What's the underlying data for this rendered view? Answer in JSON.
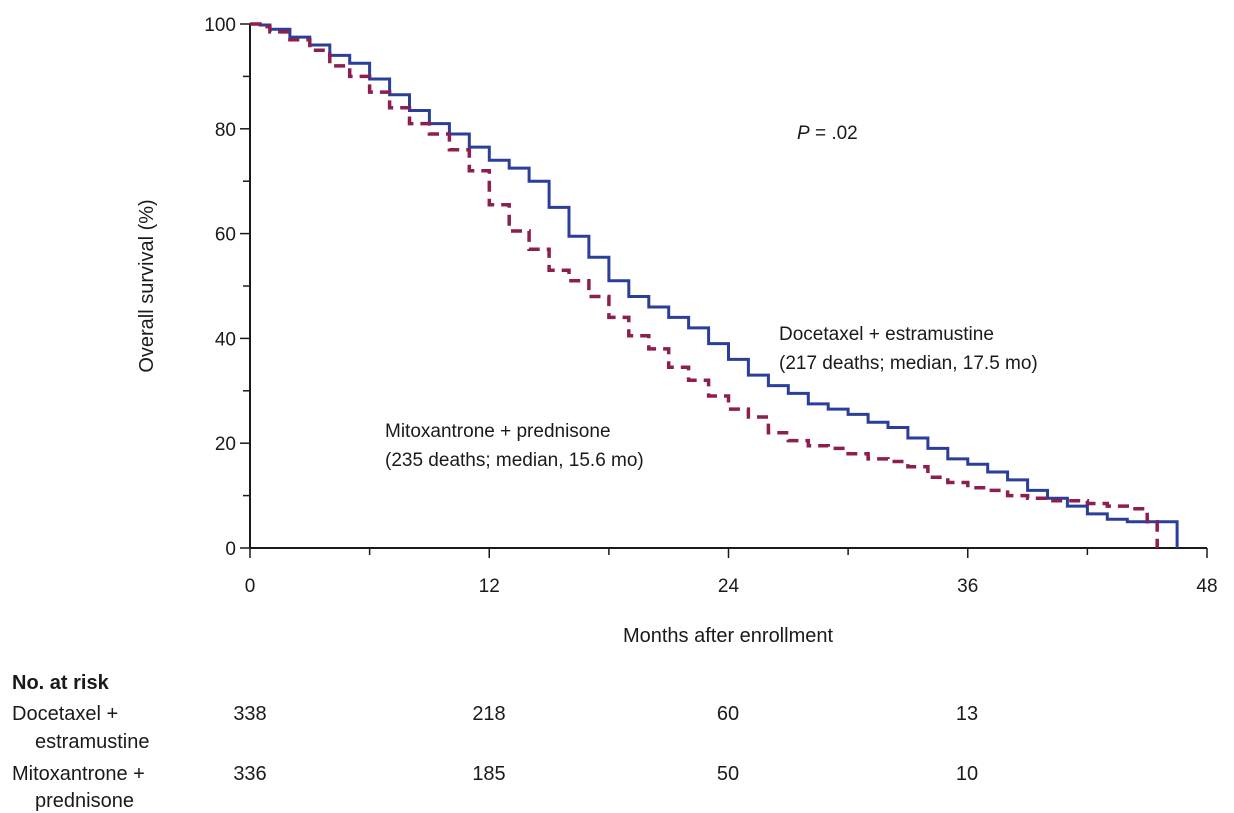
{
  "chart_data": {
    "type": "line",
    "xlabel": "Months after enrollment",
    "ylabel": "Overall survival (%)",
    "xlim": [
      0,
      48
    ],
    "ylim": [
      0,
      100
    ],
    "x_ticks": [
      0,
      12,
      24,
      36,
      48
    ],
    "y_ticks": [
      0,
      20,
      40,
      60,
      80,
      100
    ],
    "annotation": {
      "p_prefix": "P",
      "p_suffix": " = .02"
    },
    "series": [
      {
        "name": "Docetaxel + estramustine",
        "detail": "(217 deaths; median, 17.5 mo)",
        "color": "#2a3e9a",
        "dash": "solid",
        "points": [
          [
            0,
            100
          ],
          [
            0.5,
            99.8
          ],
          [
            1,
            99
          ],
          [
            2,
            97.5
          ],
          [
            3,
            96
          ],
          [
            4,
            94
          ],
          [
            5,
            92.5
          ],
          [
            6,
            89.5
          ],
          [
            7,
            86.5
          ],
          [
            8,
            83.5
          ],
          [
            9,
            81
          ],
          [
            10,
            79
          ],
          [
            11,
            76.5
          ],
          [
            12,
            74
          ],
          [
            13,
            72.5
          ],
          [
            14,
            70
          ],
          [
            15,
            65
          ],
          [
            16,
            59.5
          ],
          [
            17,
            55.5
          ],
          [
            18,
            51
          ],
          [
            19,
            48
          ],
          [
            20,
            46
          ],
          [
            21,
            44
          ],
          [
            22,
            42
          ],
          [
            23,
            39
          ],
          [
            24,
            36
          ],
          [
            25,
            33
          ],
          [
            26,
            31
          ],
          [
            27,
            29.5
          ],
          [
            28,
            27.5
          ],
          [
            29,
            26.5
          ],
          [
            30,
            25.5
          ],
          [
            31,
            24
          ],
          [
            32,
            23
          ],
          [
            33,
            21
          ],
          [
            34,
            19
          ],
          [
            35,
            17
          ],
          [
            36,
            16
          ],
          [
            37,
            14.5
          ],
          [
            38,
            13
          ],
          [
            39,
            11
          ],
          [
            40,
            9.5
          ],
          [
            41,
            8
          ],
          [
            42,
            6.5
          ],
          [
            43,
            5.5
          ],
          [
            44,
            5
          ],
          [
            45,
            5
          ],
          [
            46,
            5
          ],
          [
            46.5,
            5
          ],
          [
            46.5,
            0
          ]
        ]
      },
      {
        "name": "Mitoxantrone + prednisone",
        "detail": "(235 deaths; median, 15.6 mo)",
        "color": "#8c1f4f",
        "dash": "dashed",
        "points": [
          [
            0,
            100
          ],
          [
            0.5,
            99.5
          ],
          [
            1,
            98.5
          ],
          [
            2,
            97
          ],
          [
            3,
            95
          ],
          [
            4,
            92
          ],
          [
            5,
            90
          ],
          [
            6,
            87
          ],
          [
            7,
            84
          ],
          [
            8,
            81
          ],
          [
            9,
            79
          ],
          [
            10,
            76
          ],
          [
            11,
            72
          ],
          [
            12,
            65.5
          ],
          [
            13,
            60.5
          ],
          [
            14,
            57
          ],
          [
            15,
            53
          ],
          [
            16,
            51
          ],
          [
            17,
            48
          ],
          [
            18,
            44
          ],
          [
            19,
            40.5
          ],
          [
            20,
            38
          ],
          [
            21,
            34.5
          ],
          [
            22,
            32
          ],
          [
            23,
            29
          ],
          [
            24,
            26.5
          ],
          [
            25,
            25
          ],
          [
            26,
            22
          ],
          [
            27,
            20.5
          ],
          [
            28,
            19.5
          ],
          [
            29,
            19
          ],
          [
            30,
            18
          ],
          [
            31,
            17
          ],
          [
            32,
            16.5
          ],
          [
            33,
            15.5
          ],
          [
            34,
            13.5
          ],
          [
            35,
            12.5
          ],
          [
            36,
            11.5
          ],
          [
            37,
            11
          ],
          [
            38,
            10
          ],
          [
            39,
            9.5
          ],
          [
            40,
            9
          ],
          [
            41,
            9
          ],
          [
            42,
            8.5
          ],
          [
            43,
            8
          ],
          [
            44,
            7.5
          ],
          [
            45,
            5
          ],
          [
            45.5,
            2
          ],
          [
            45.5,
            0
          ]
        ]
      }
    ]
  },
  "risk_table": {
    "heading": "No. at risk",
    "columns_x": [
      0,
      12,
      24,
      36
    ],
    "rows": [
      {
        "label_line1": "Docetaxel +",
        "label_line2": "estramustine",
        "values": [
          "338",
          "218",
          "60",
          "13"
        ]
      },
      {
        "label_line1": "Mitoxantrone +",
        "label_line2": "prednisone",
        "values": [
          "336",
          "185",
          "50",
          "10"
        ]
      }
    ]
  }
}
